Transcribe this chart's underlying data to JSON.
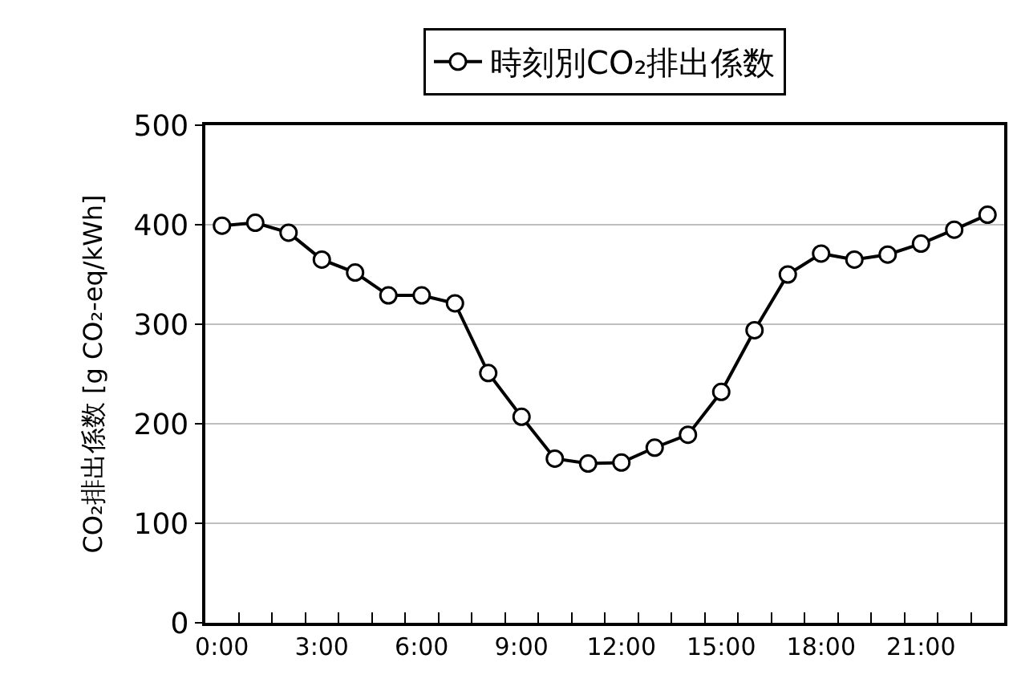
{
  "chart_data": {
    "type": "line",
    "ylabel": "CO₂排出係数 [g CO₂-eq/kWh]",
    "categories": [
      "0:00",
      null,
      null,
      "3:00",
      null,
      null,
      "6:00",
      null,
      null,
      "9:00",
      null,
      null,
      "12:00",
      null,
      null,
      "15:00",
      null,
      null,
      "18:00",
      null,
      null,
      "21:00",
      null,
      null
    ],
    "series": [
      {
        "name": "時刻別CO₂排出係数",
        "color": "#000000",
        "values": [
          399,
          402,
          392,
          365,
          352,
          329,
          329,
          321,
          251,
          207,
          165,
          160,
          161,
          176,
          189,
          232,
          294,
          350,
          371,
          365,
          370,
          381,
          395,
          410
        ]
      }
    ],
    "ylim": [
      0,
      500
    ],
    "yticks": [
      0,
      100,
      200,
      300,
      400,
      500
    ],
    "grid": "y",
    "legend": "top",
    "marker": "circle",
    "line_style": "solid"
  }
}
